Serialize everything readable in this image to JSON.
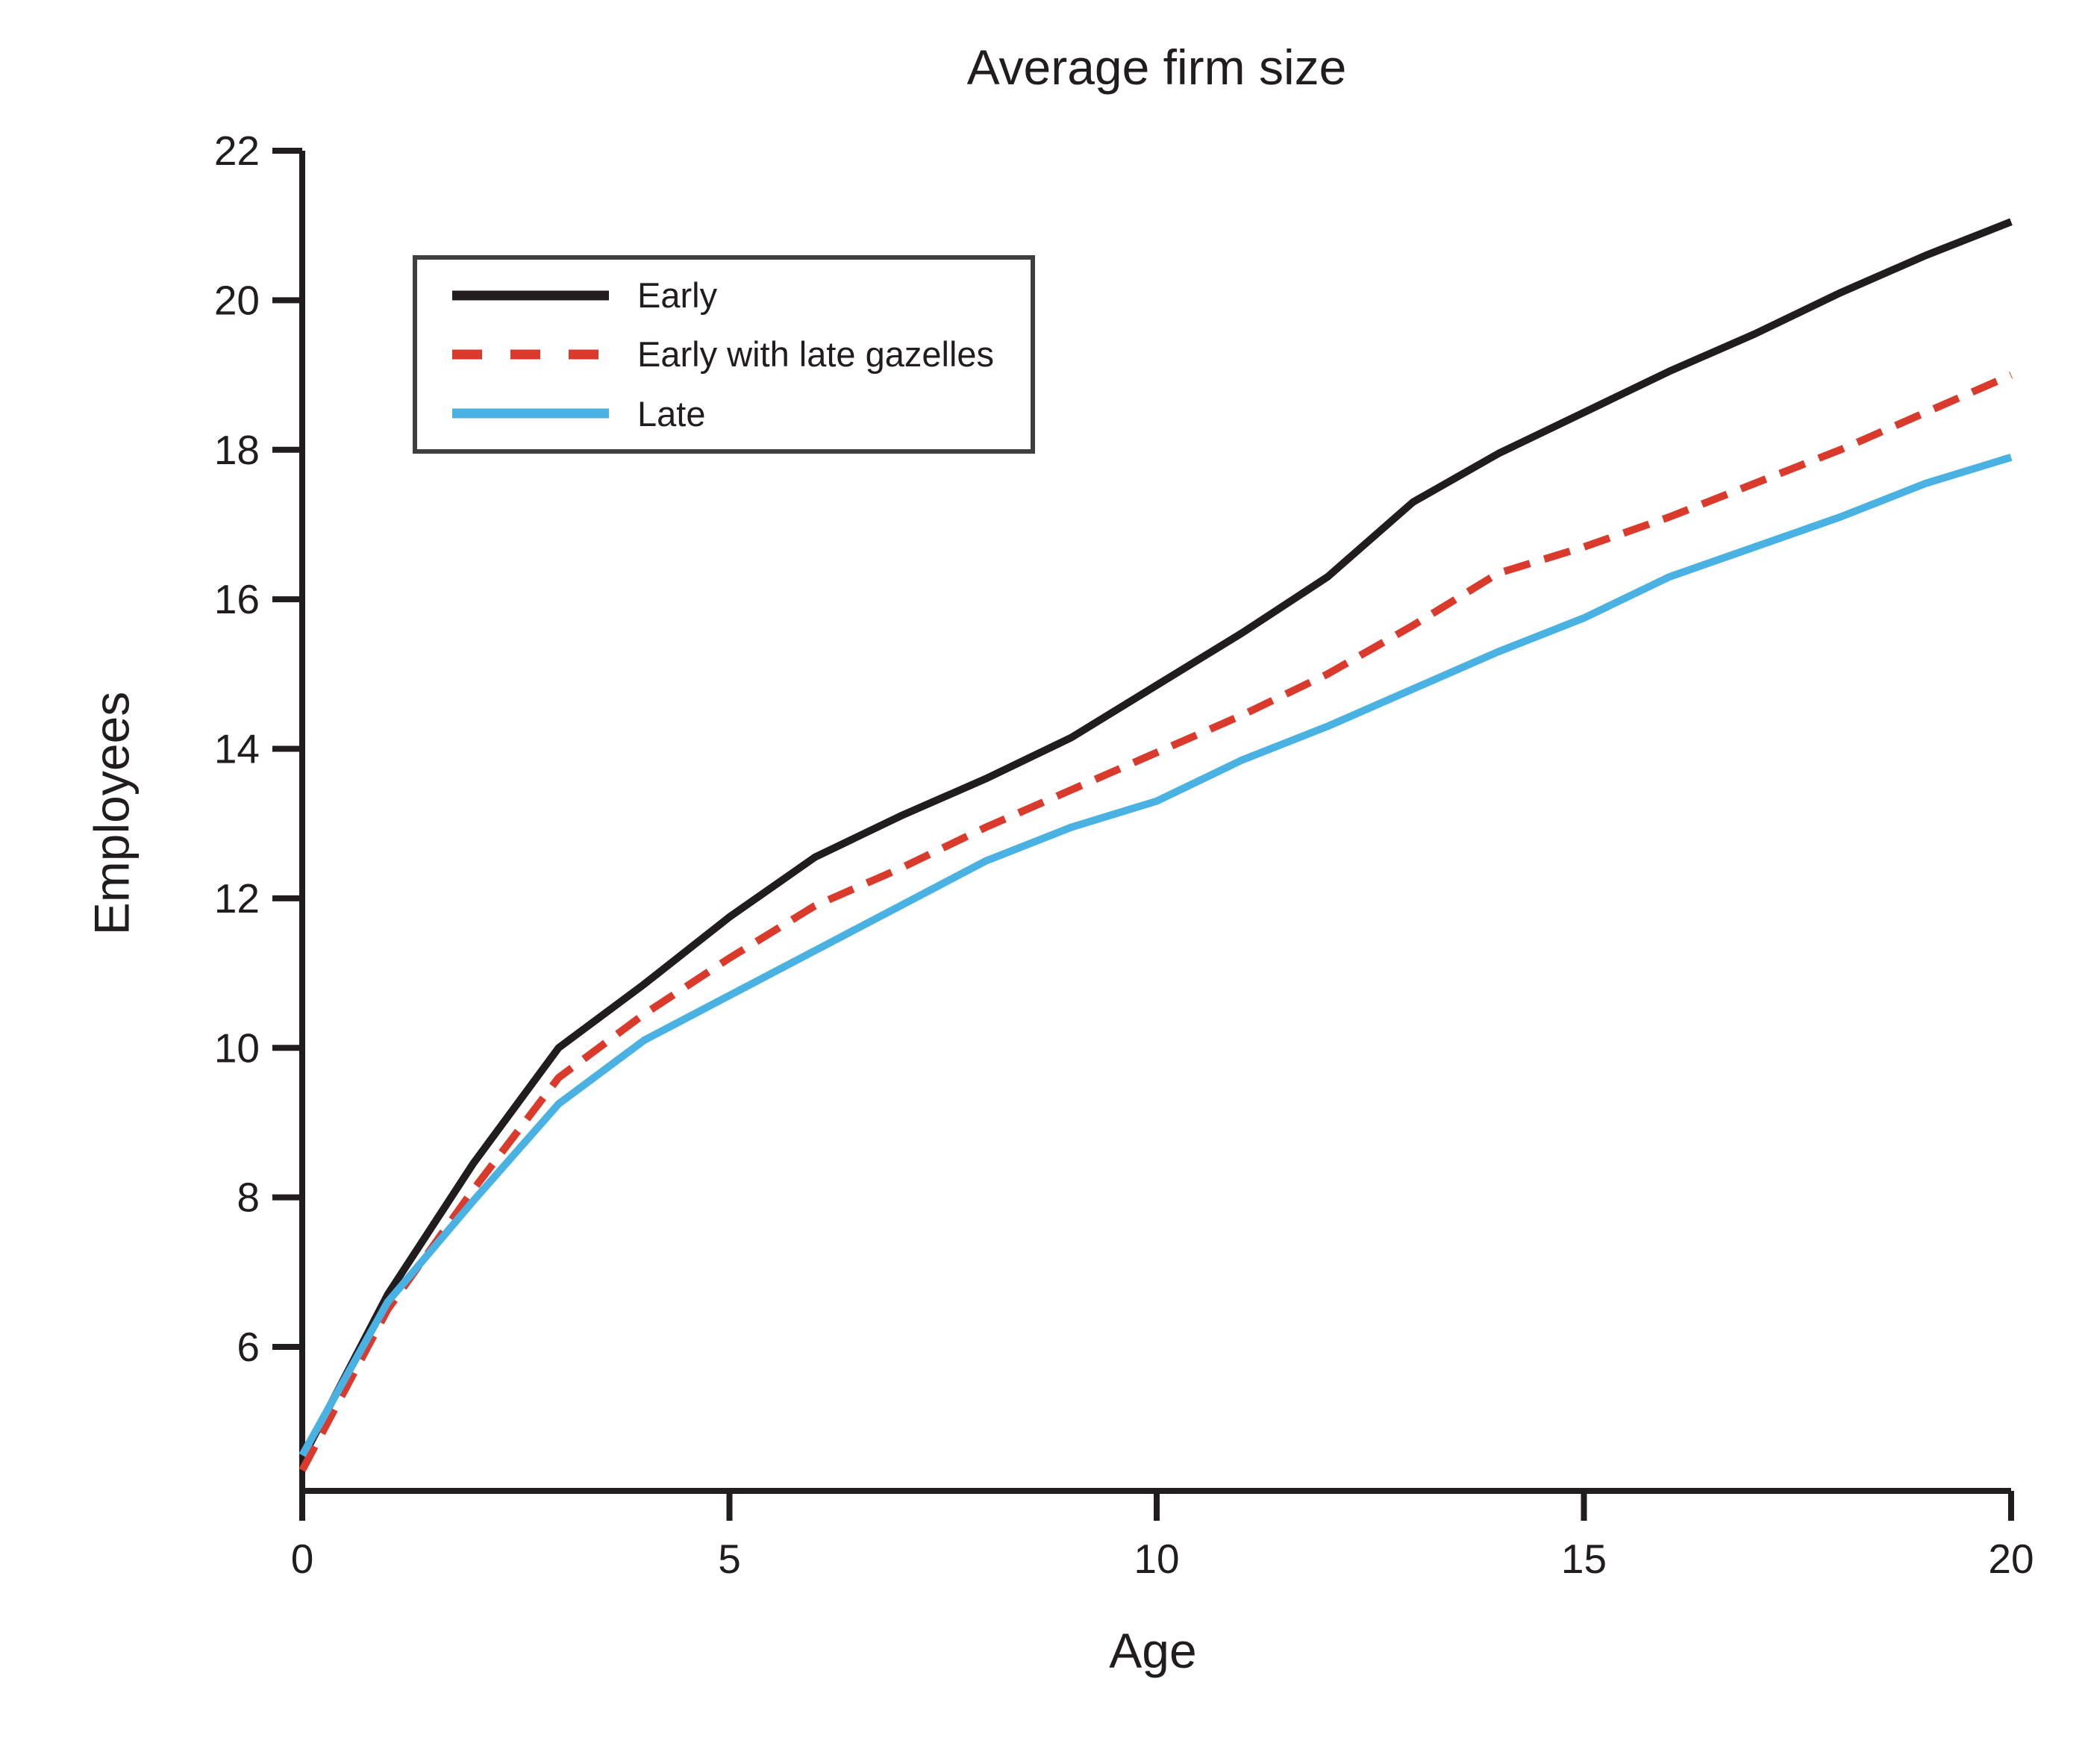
{
  "chart_data": {
    "type": "line",
    "title": "Average firm size",
    "xlabel": "Age",
    "ylabel": "Employees",
    "x": [
      0,
      1,
      2,
      3,
      4,
      5,
      6,
      7,
      8,
      9,
      10,
      11,
      12,
      13,
      14,
      15,
      16,
      17,
      18,
      19,
      20
    ],
    "x_ticks": [
      0,
      5,
      10,
      15,
      20
    ],
    "y_ticks": [
      6,
      8,
      10,
      12,
      14,
      16,
      18,
      20,
      22
    ],
    "xlim": [
      0,
      20
    ],
    "ylim": [
      4.1,
      22
    ],
    "grid": false,
    "legend_position": "upper-left-inside",
    "series": [
      {
        "name": "Early",
        "color": "#211d1e",
        "dash": null,
        "legend_dash": null,
        "values": [
          4.5,
          6.7,
          8.45,
          10.0,
          10.85,
          11.75,
          12.55,
          13.1,
          13.6,
          14.15,
          14.85,
          15.55,
          16.3,
          17.3,
          17.95,
          18.5,
          19.05,
          19.55,
          20.1,
          20.6,
          21.05
        ]
      },
      {
        "name": "Early with late gazelles",
        "color": "#d93a2b",
        "dash": "36 20",
        "legend_dash": "40 38",
        "values": [
          4.35,
          6.5,
          8.1,
          9.6,
          10.45,
          11.2,
          11.9,
          12.4,
          12.95,
          13.45,
          13.95,
          14.45,
          15.0,
          15.65,
          16.35,
          16.7,
          17.1,
          17.55,
          18.0,
          18.5,
          19.0
        ]
      },
      {
        "name": "Late",
        "color": "#4ab2e3",
        "dash": null,
        "legend_dash": null,
        "values": [
          4.55,
          6.6,
          7.95,
          9.25,
          10.1,
          10.7,
          11.3,
          11.9,
          12.5,
          12.95,
          13.3,
          13.85,
          14.3,
          14.8,
          15.3,
          15.75,
          16.3,
          16.7,
          17.1,
          17.55,
          17.9
        ]
      }
    ],
    "colors": {
      "ink": "#211d1e",
      "early": "#211d1e",
      "early_with_late_gazelles": "#d93a2b",
      "late": "#4ab2e3",
      "legend_border": "#3f3f3f",
      "background": "#ffffff"
    }
  }
}
